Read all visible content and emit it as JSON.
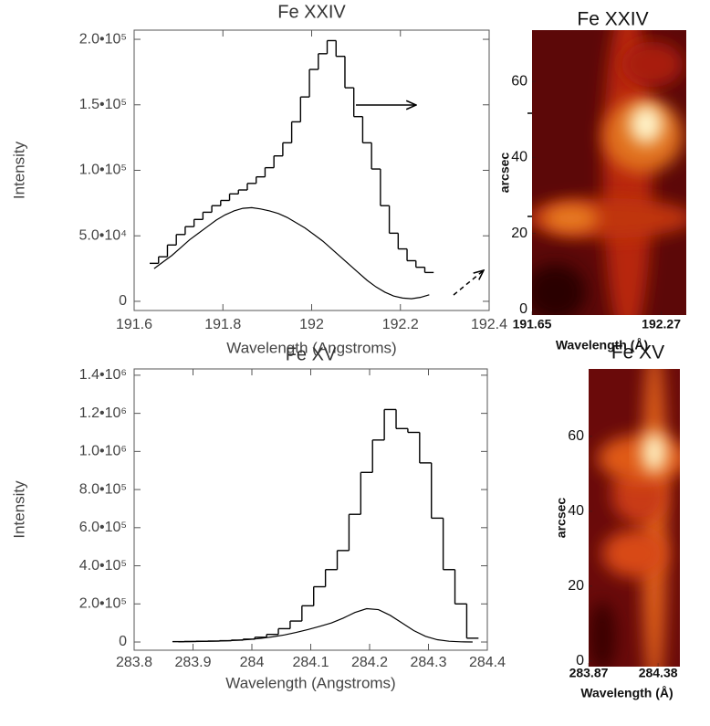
{
  "chart_data": [
    {
      "type": "line",
      "title": "Fe XXIV",
      "xlabel": "Wavelength (Angstroms)",
      "ylabel": "Intensity",
      "x": [
        191.645,
        191.665,
        191.685,
        191.705,
        191.725,
        191.745,
        191.765,
        191.785,
        191.805,
        191.825,
        191.845,
        191.865,
        191.885,
        191.905,
        191.925,
        191.945,
        191.965,
        191.985,
        192.005,
        192.025,
        192.045,
        192.065,
        192.085,
        192.105,
        192.125,
        192.145,
        192.165,
        192.185,
        192.205,
        192.225,
        192.245,
        192.265
      ],
      "series": [
        {
          "color": "#000000",
          "drawstyle": "steps",
          "values": [
            29000,
            34000,
            43000,
            51000,
            57000,
            62500,
            68000,
            73000,
            77000,
            82000,
            85000,
            90000,
            95000,
            102000,
            111000,
            121000,
            137000,
            156000,
            177000,
            189000,
            199000,
            187000,
            163000,
            141000,
            121000,
            101000,
            73000,
            52000,
            40000,
            31000,
            26000,
            22000
          ]
        },
        {
          "color": "#000000",
          "drawstyle": "default",
          "values": [
            25000,
            30000,
            35000,
            41000,
            47000,
            52000,
            57000,
            62000,
            66000,
            69000,
            71000,
            71500,
            70500,
            69000,
            67000,
            64000,
            60000,
            56000,
            51000,
            46000,
            40000,
            34000,
            28000,
            22000,
            16000,
            11000,
            7000,
            4000,
            2500,
            2000,
            3000,
            5000
          ]
        }
      ],
      "xlim": [
        191.6,
        192.4
      ],
      "xticks": [
        191.6,
        191.8,
        192.0,
        192.2,
        192.4
      ],
      "ylim": [
        -7000,
        207000
      ],
      "yticks": [
        0,
        {
          "value": 50000,
          "label": "5.0•10⁴"
        },
        {
          "value": 100000,
          "label": "1.0•10⁵"
        },
        {
          "value": 150000,
          "label": "1.5•10⁵"
        },
        {
          "value": 200000,
          "label": "2.0•10⁵"
        }
      ]
    },
    {
      "type": "image",
      "title": "Fe XXIV",
      "xlabel": "Wavelength (Å)",
      "ylabel": "arcsec",
      "xlim": [
        191.65,
        192.39
      ],
      "xticks": [
        191.65,
        192.27
      ],
      "ylim": [
        -1.5,
        73.5
      ],
      "yticks": [
        0,
        20,
        40,
        60
      ]
    },
    {
      "type": "line",
      "title": "Fe XV",
      "xlabel": "Wavelength (Angstroms)",
      "ylabel": "Intensity",
      "x": [
        283.875,
        283.895,
        283.915,
        283.935,
        283.955,
        283.975,
        283.995,
        284.015,
        284.035,
        284.055,
        284.075,
        284.095,
        284.115,
        284.135,
        284.155,
        284.175,
        284.195,
        284.215,
        284.235,
        284.255,
        284.275,
        284.295,
        284.315,
        284.335,
        284.355,
        284.375
      ],
      "series": [
        {
          "color": "#000000",
          "drawstyle": "steps",
          "values": [
            2000,
            3000,
            4000,
            5000,
            7000,
            10000,
            15000,
            25000,
            40000,
            70000,
            110000,
            190000,
            290000,
            380000,
            480000,
            670000,
            890000,
            1060000,
            1220000,
            1120000,
            1100000,
            940000,
            650000,
            380000,
            200000,
            20000
          ]
        },
        {
          "color": "#000000",
          "drawstyle": "default",
          "values": [
            1000,
            2000,
            3000,
            4000,
            6000,
            9000,
            13000,
            19000,
            27000,
            37000,
            50000,
            65000,
            82000,
            100000,
            125000,
            155000,
            175000,
            170000,
            140000,
            100000,
            60000,
            30000,
            12000,
            4000,
            1000,
            0
          ]
        }
      ],
      "xlim": [
        283.8,
        284.4
      ],
      "xticks": [
        283.8,
        283.9,
        284.0,
        284.1,
        284.2,
        284.3,
        284.4
      ],
      "ylim": [
        -43000,
        1433000
      ],
      "yticks": [
        0,
        {
          "value": 200000,
          "label": "2.0•10⁵"
        },
        {
          "value": 400000,
          "label": "4.0•10⁵"
        },
        {
          "value": 600000,
          "label": "6.0•10⁵"
        },
        {
          "value": 800000,
          "label": "8.0•10⁵"
        },
        {
          "value": 1000000,
          "label": "1.0•10⁶"
        },
        {
          "value": 1200000,
          "label": "1.2•10⁶"
        },
        {
          "value": 1400000,
          "label": "1.4•10⁶"
        }
      ]
    },
    {
      "type": "image",
      "title": "Fe XV",
      "xlabel": "Wavelength (Å)",
      "ylabel": "arcsec",
      "xlim": [
        283.87,
        284.54
      ],
      "xticks": [
        283.87,
        284.38
      ],
      "ylim": [
        -1.5,
        78
      ],
      "yticks": [
        0,
        20,
        40,
        60
      ]
    }
  ]
}
